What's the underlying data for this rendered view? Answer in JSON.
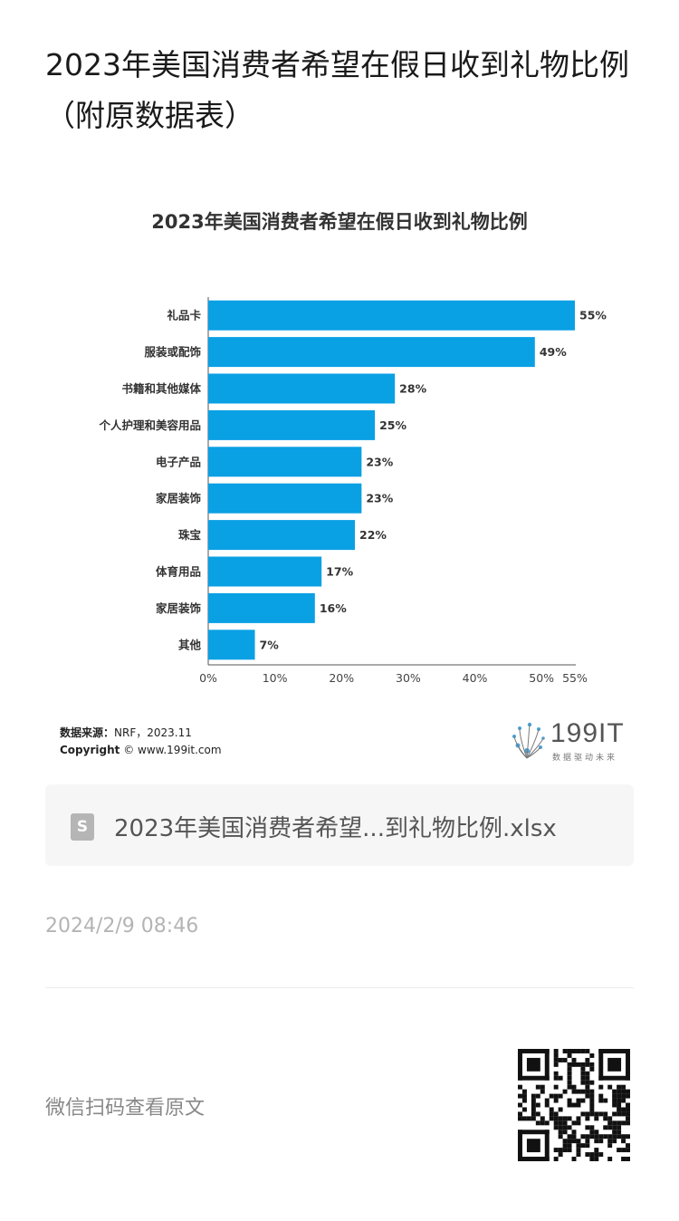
{
  "article": {
    "title": "2023年美国消费者希望在假日收到礼物比例（附原数据表）"
  },
  "chart_data": {
    "type": "bar",
    "orientation": "horizontal",
    "title": "2023年美国消费者希望在假日收到礼物比例",
    "categories": [
      "礼品卡",
      "服装或配饰",
      "书籍和其他媒体",
      "个人护理和美容用品",
      "电子产品",
      "家居装饰",
      "珠宝",
      "体育用品",
      "家居装饰",
      "其他"
    ],
    "values": [
      55,
      49,
      28,
      25,
      23,
      23,
      22,
      17,
      16,
      7
    ],
    "value_labels": [
      "55%",
      "49%",
      "28%",
      "25%",
      "23%",
      "23%",
      "22%",
      "17%",
      "16%",
      "7%"
    ],
    "x_ticks": [
      0,
      10,
      20,
      30,
      40,
      50,
      55
    ],
    "x_tick_labels": [
      "0%",
      "10%",
      "20%",
      "30%",
      "40%",
      "50%",
      "55%"
    ],
    "xlim": [
      0,
      55
    ],
    "bar_color": "#0aa0e4",
    "grid": false
  },
  "source": {
    "label": "数据来源：",
    "text": "NRF，2023.11",
    "copyright_label": "Copyright",
    "copyright_text": "© www.199it.com"
  },
  "logo": {
    "text": "199IT",
    "subtitle": "数据驱动未来"
  },
  "attachment": {
    "icon": "spreadsheet-file-icon",
    "icon_glyph": "S",
    "file_name": "2023年美国消费者希望...到礼物比例.xlsx"
  },
  "footer": {
    "timestamp": "2024/2/9 08:46",
    "qr_hint": "微信扫码查看原文"
  }
}
